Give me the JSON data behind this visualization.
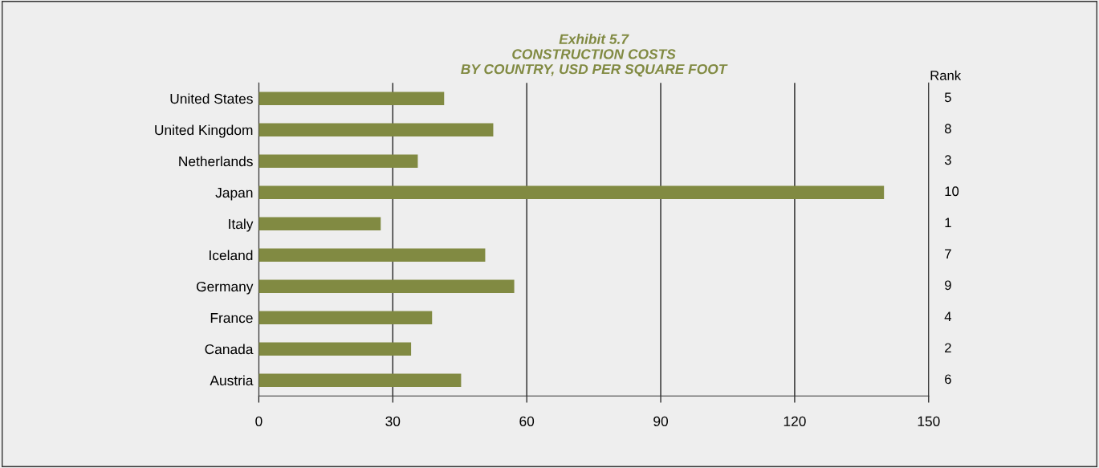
{
  "chart_data": {
    "type": "bar",
    "orientation": "horizontal",
    "title": "Exhibit 5.7\nCONSTRUCTION COSTS\nBY COUNTRY, USD PER SQUARE FOOT",
    "categories": [
      "United States",
      "United Kingdom",
      "Netherlands",
      "Japan",
      "Italy",
      "Iceland",
      "Germany",
      "France",
      "Canada",
      "Austria"
    ],
    "values": [
      41.5,
      52.5,
      35.6,
      140,
      27.3,
      50.7,
      57.2,
      38.8,
      34.1,
      45.3
    ],
    "color": "#818a42",
    "xlim": [
      0,
      150
    ],
    "xticks": [
      0,
      30,
      60,
      90,
      120,
      150
    ],
    "grid": "x",
    "annotations": [
      "Rank",
      "5",
      "8",
      "3",
      "10",
      "1",
      "7",
      "9",
      "4",
      "2",
      "6"
    ]
  }
}
